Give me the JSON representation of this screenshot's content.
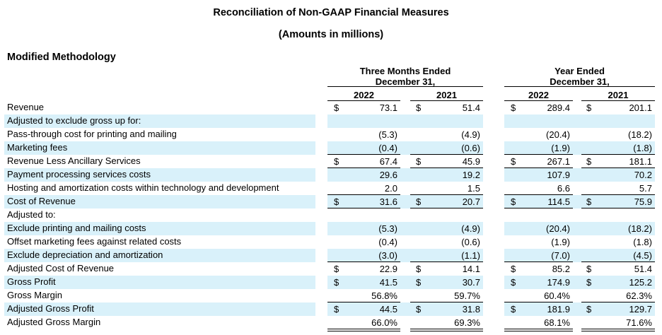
{
  "title": "Reconciliation of Non-GAAP Financial Measures",
  "subtitle": "(Amounts in millions)",
  "section": "Modified Methodology",
  "headers": {
    "three_months": [
      "Three Months Ended",
      "December 31,"
    ],
    "year": [
      "Year Ended",
      "December 31,"
    ],
    "years": [
      "2022",
      "2021",
      "2022",
      "2021"
    ]
  },
  "colors": {
    "shade": "#d9f1fa",
    "text": "#000000"
  },
  "chart_data": {
    "type": "table",
    "columns": [
      "Three Months Ended December 31, 2022",
      "Three Months Ended December 31, 2021",
      "Year Ended December 31, 2022",
      "Year Ended December 31, 2021"
    ],
    "rows": [
      {
        "label": "Revenue",
        "shade": false,
        "dollar": true,
        "values": [
          "73.1",
          "51.4",
          "289.4",
          "201.1"
        ],
        "ul": "none"
      },
      {
        "label": "Adjusted to exclude gross up for:",
        "shade": true,
        "dollar": false,
        "values": [],
        "ul": "none"
      },
      {
        "label": "Pass-through cost for printing and mailing",
        "shade": false,
        "dollar": false,
        "values": [
          "(5.3)",
          "(4.9)",
          "(20.4)",
          "(18.2)"
        ],
        "ul": "none"
      },
      {
        "label": "Marketing fees",
        "shade": true,
        "dollar": false,
        "values": [
          "(0.4)",
          "(0.6)",
          "(1.9)",
          "(1.8)"
        ],
        "ul": "single"
      },
      {
        "label": "Revenue Less Ancillary Services",
        "shade": false,
        "dollar": true,
        "values": [
          "67.4",
          "45.9",
          "267.1",
          "181.1"
        ],
        "ul": "single"
      },
      {
        "label": "Payment processing services costs",
        "shade": true,
        "dollar": false,
        "values": [
          "29.6",
          "19.2",
          "107.9",
          "70.2"
        ],
        "ul": "none"
      },
      {
        "label": "Hosting and amortization costs within technology and development",
        "shade": false,
        "dollar": false,
        "values": [
          "2.0",
          "1.5",
          "6.6",
          "5.7"
        ],
        "ul": "single"
      },
      {
        "label": "Cost of Revenue",
        "shade": true,
        "dollar": true,
        "values": [
          "31.6",
          "20.7",
          "114.5",
          "75.9"
        ],
        "ul": "single"
      },
      {
        "label": "Adjusted to:",
        "shade": false,
        "dollar": false,
        "values": [],
        "ul": "none"
      },
      {
        "label": "Exclude printing and mailing costs",
        "shade": true,
        "dollar": false,
        "values": [
          "(5.3)",
          "(4.9)",
          "(20.4)",
          "(18.2)"
        ],
        "ul": "none"
      },
      {
        "label": "Offset marketing fees against related costs",
        "shade": false,
        "dollar": false,
        "values": [
          "(0.4)",
          "(0.6)",
          "(1.9)",
          "(1.8)"
        ],
        "ul": "none"
      },
      {
        "label": "Exclude depreciation and amortization",
        "shade": true,
        "dollar": false,
        "values": [
          "(3.0)",
          "(1.1)",
          "(7.0)",
          "(4.5)"
        ],
        "ul": "single"
      },
      {
        "label": "Adjusted Cost of Revenue",
        "shade": false,
        "dollar": true,
        "values": [
          "22.9",
          "14.1",
          "85.2",
          "51.4"
        ],
        "ul": "none"
      },
      {
        "label": "Gross Profit",
        "shade": true,
        "dollar": true,
        "values": [
          "41.5",
          "30.7",
          "174.9",
          "125.2"
        ],
        "ul": "none"
      },
      {
        "label": "Gross Margin",
        "shade": false,
        "dollar": false,
        "values": [
          "56.8%",
          "59.7%",
          "60.4%",
          "62.3%"
        ],
        "ul": "single"
      },
      {
        "label": "Adjusted Gross Profit",
        "shade": true,
        "dollar": true,
        "values": [
          "44.5",
          "31.8",
          "181.9",
          "129.7"
        ],
        "ul": "none"
      },
      {
        "label": "Adjusted Gross Margin",
        "shade": false,
        "dollar": false,
        "values": [
          "66.0%",
          "69.3%",
          "68.1%",
          "71.6%"
        ],
        "ul": "double"
      }
    ]
  }
}
